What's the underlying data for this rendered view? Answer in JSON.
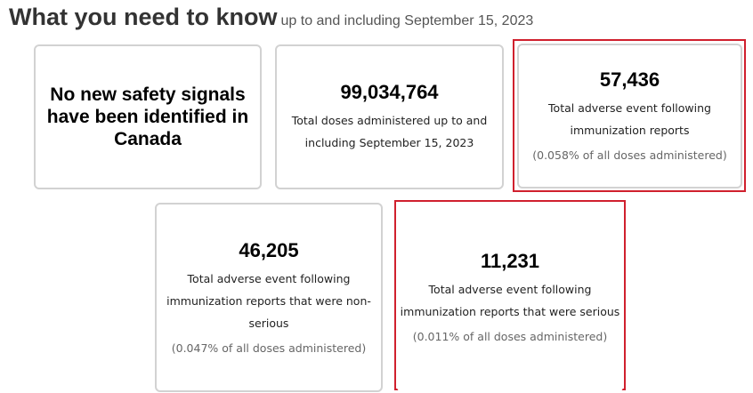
{
  "header": {
    "title": "What you need to know",
    "subtitle": "up to and including September 15, 2023"
  },
  "cards": [
    {
      "statement": "No new safety signals have been identified in Canada"
    },
    {
      "number": "99,034,764",
      "description": "Total doses administered up to and including September 15, 2023"
    },
    {
      "number": "57,436",
      "description": "Total adverse event following immunization reports",
      "percent": "(0.058% of all doses administered)"
    },
    {
      "number": "46,205",
      "description": "Total adverse event following immunization reports that were non-serious",
      "percent": "(0.047% of all doses administered)"
    },
    {
      "number": "11,231",
      "description": "Total adverse event following immunization reports that were serious",
      "percent": "(0.011% of all doses administered)"
    }
  ],
  "colors": {
    "highlight": "#d0202e",
    "card_border": "#d2d2d2"
  }
}
